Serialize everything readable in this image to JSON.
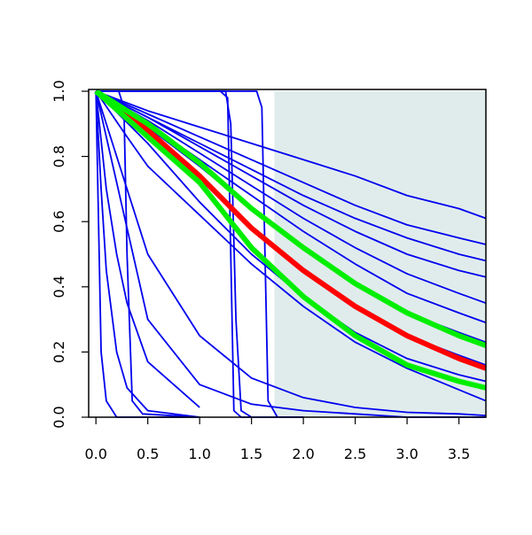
{
  "chart_data": {
    "type": "line",
    "xlim": [
      -0.07,
      3.76
    ],
    "ylim": [
      0,
      1
    ],
    "xticks": [
      {
        "value": 0,
        "label": "0.0"
      },
      {
        "value": 0.5,
        "label": "0.5"
      },
      {
        "value": 1,
        "label": "1.0"
      },
      {
        "value": 1.5,
        "label": "1.5"
      },
      {
        "value": 2,
        "label": "2.0"
      },
      {
        "value": 2.5,
        "label": "2.5"
      },
      {
        "value": 3,
        "label": "3.0"
      },
      {
        "value": 3.5,
        "label": "3.5"
      }
    ],
    "yticks": [
      {
        "value": 0,
        "label": "0.0"
      },
      {
        "value": 0.2,
        "label": "0.2"
      },
      {
        "value": 0.4,
        "label": "0.4"
      },
      {
        "value": 0.6,
        "label": "0.6"
      },
      {
        "value": 0.8,
        "label": "0.8"
      },
      {
        "value": 1,
        "label": "1.0"
      }
    ],
    "shaded_region": {
      "xmin": 1.72,
      "xmax": 3.76,
      "color": "#e0ecec"
    },
    "series": [
      {
        "color": "#0000ee",
        "x": [
          0,
          0.5,
          1,
          1.5,
          2,
          2.5,
          3,
          3.5,
          3.76
        ],
        "values": [
          1,
          0.94,
          0.89,
          0.84,
          0.79,
          0.74,
          0.68,
          0.64,
          0.61
        ]
      },
      {
        "color": "#0000ee",
        "x": [
          0,
          0.5,
          1,
          1.5,
          2,
          2.5,
          3,
          3.5,
          3.76
        ],
        "values": [
          1,
          0.93,
          0.86,
          0.79,
          0.72,
          0.65,
          0.59,
          0.55,
          0.53
        ]
      },
      {
        "color": "#0000ee",
        "x": [
          0,
          0.5,
          1,
          1.5,
          2,
          2.5,
          3,
          3.5,
          3.76
        ],
        "values": [
          1,
          0.92,
          0.84,
          0.76,
          0.68,
          0.61,
          0.55,
          0.5,
          0.48
        ]
      },
      {
        "color": "#0000ee",
        "x": [
          0,
          0.5,
          1,
          1.5,
          2,
          2.5,
          3,
          3.5,
          3.76
        ],
        "values": [
          1,
          0.92,
          0.83,
          0.74,
          0.65,
          0.57,
          0.5,
          0.45,
          0.43
        ]
      },
      {
        "color": "#0000ee",
        "x": [
          0,
          0.5,
          1,
          1.5,
          2,
          2.5,
          3,
          3.5,
          3.76
        ],
        "values": [
          1,
          0.91,
          0.81,
          0.71,
          0.61,
          0.52,
          0.44,
          0.38,
          0.35
        ]
      },
      {
        "color": "#0000ee",
        "x": [
          0,
          0.5,
          1,
          1.5,
          2,
          2.5,
          3,
          3.5,
          3.76
        ],
        "values": [
          1,
          0.9,
          0.79,
          0.68,
          0.57,
          0.47,
          0.38,
          0.32,
          0.29
        ]
      },
      {
        "color": "#0000ee",
        "x": [
          0,
          0.5,
          1,
          1.5,
          2,
          2.5,
          3,
          3.5,
          3.76
        ],
        "values": [
          1,
          0.89,
          0.77,
          0.64,
          0.52,
          0.41,
          0.32,
          0.26,
          0.23
        ]
      },
      {
        "color": "#0000ee",
        "x": [
          0,
          0.5,
          1,
          1.5,
          2,
          2.5,
          3,
          3.5,
          3.76
        ],
        "values": [
          1,
          0.87,
          0.73,
          0.58,
          0.45,
          0.34,
          0.25,
          0.19,
          0.16
        ]
      },
      {
        "color": "#0000ee",
        "x": [
          0,
          0.5,
          1,
          1.5,
          2,
          2.5,
          3,
          3.5,
          3.76
        ],
        "values": [
          1,
          0.84,
          0.66,
          0.5,
          0.37,
          0.26,
          0.18,
          0.13,
          0.11
        ]
      },
      {
        "color": "#0000ee",
        "x": [
          0,
          0.3,
          0.5,
          1,
          1.5,
          2,
          2.5,
          3,
          3.76
        ],
        "values": [
          1,
          0.86,
          0.77,
          0.62,
          0.47,
          0.34,
          0.23,
          0.15,
          0.05
        ]
      },
      {
        "color": "#0000ee",
        "x": [
          0,
          0.5,
          1,
          1.5,
          2,
          2.5,
          3,
          3.5,
          3.76
        ],
        "values": [
          1,
          0.5,
          0.25,
          0.12,
          0.06,
          0.03,
          0.015,
          0.01,
          0.005
        ]
      },
      {
        "color": "#0000ee",
        "x": [
          0,
          0.5,
          1,
          1.5,
          2,
          2.5,
          3,
          3.5,
          3.76
        ],
        "values": [
          1,
          0.3,
          0.1,
          0.04,
          0.02,
          0.01,
          0,
          0,
          0
        ]
      },
      {
        "color": "#0000ee",
        "x": [
          0,
          0.05,
          0.1,
          0.2,
          0.3,
          0.5,
          1
        ],
        "values": [
          1,
          0.2,
          0.05,
          0,
          0,
          0,
          0
        ]
      },
      {
        "color": "#0000ee",
        "x": [
          0,
          0.05,
          0.1,
          0.2,
          0.3,
          0.5,
          1
        ],
        "values": [
          1,
          0.7,
          0.45,
          0.2,
          0.09,
          0.02,
          0
        ]
      },
      {
        "color": "#0000ee",
        "x": [
          0,
          0.05,
          0.1,
          0.2,
          0.3,
          0.5,
          1
        ],
        "values": [
          1,
          0.85,
          0.7,
          0.5,
          0.35,
          0.17,
          0.03
        ]
      },
      {
        "color": "#0000ee",
        "x": [
          0,
          0.22,
          0.27,
          0.3,
          0.35,
          0.45,
          1
        ],
        "values": [
          1,
          1,
          0.95,
          0.5,
          0.05,
          0.01,
          0
        ]
      },
      {
        "color": "#0000ee",
        "x": [
          0,
          1.2,
          1.27,
          1.3,
          1.33,
          1.4,
          2
        ],
        "values": [
          1,
          1,
          0.98,
          0.5,
          0.02,
          0,
          0
        ]
      },
      {
        "color": "#0000ee",
        "x": [
          0,
          1.25,
          1.3,
          1.35,
          1.4,
          1.5
        ],
        "values": [
          1,
          1,
          0.9,
          0.3,
          0.02,
          0
        ]
      },
      {
        "color": "#0000ee",
        "x": [
          0,
          1.55,
          1.6,
          1.63,
          1.66,
          1.75,
          2
        ],
        "values": [
          1,
          1,
          0.95,
          0.5,
          0.05,
          0,
          0
        ]
      },
      {
        "color": "#ff0000",
        "x": [
          0,
          0.5,
          1,
          1.5,
          2,
          2.5,
          3,
          3.5,
          3.76
        ],
        "values": [
          1,
          0.88,
          0.74,
          0.58,
          0.45,
          0.34,
          0.25,
          0.18,
          0.15
        ]
      },
      {
        "color": "#00ee00",
        "x": [
          0,
          0.5,
          1,
          1.5,
          2,
          2.5,
          3,
          3.5,
          3.76
        ],
        "values": [
          1,
          0.86,
          0.72,
          0.52,
          0.37,
          0.25,
          0.16,
          0.11,
          0.09
        ]
      },
      {
        "color": "#00ee00",
        "x": [
          0,
          0.5,
          1,
          1.5,
          2,
          2.5,
          3,
          3.5,
          3.76
        ],
        "values": [
          1,
          0.9,
          0.78,
          0.64,
          0.52,
          0.41,
          0.32,
          0.25,
          0.22
        ]
      }
    ]
  }
}
